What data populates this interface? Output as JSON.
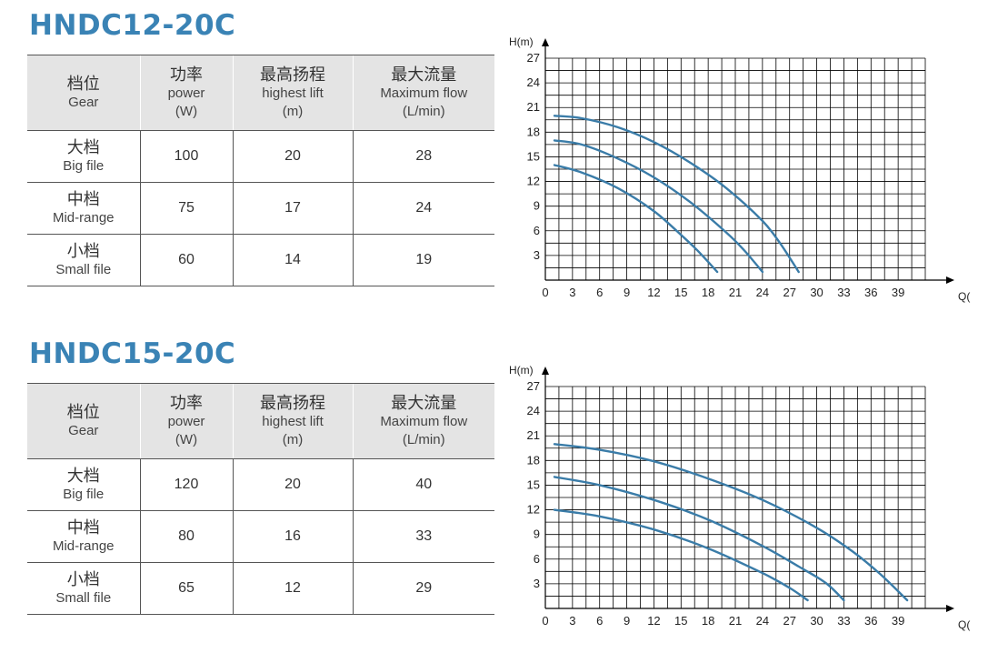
{
  "sections": [
    {
      "model": "HNDC12-20C",
      "table": {
        "headers": [
          {
            "zh": "档位",
            "en": "Gear",
            "unit": ""
          },
          {
            "zh": "功率",
            "en": "power",
            "unit": "(W)"
          },
          {
            "zh": "最高扬程",
            "en": "highest lift",
            "unit": "(m)"
          },
          {
            "zh": "最大流量",
            "en": "Maximum flow",
            "unit": "(L/min)"
          }
        ],
        "rows": [
          {
            "gear_zh": "大档",
            "gear_en": "Big file",
            "power": "100",
            "lift": "20",
            "flow": "28"
          },
          {
            "gear_zh": "中档",
            "gear_en": "Mid-range",
            "power": "75",
            "lift": "17",
            "flow": "24"
          },
          {
            "gear_zh": "小档",
            "gear_en": "Small file",
            "power": "60",
            "lift": "14",
            "flow": "19"
          }
        ]
      }
    },
    {
      "model": "HNDC15-20C",
      "table": {
        "headers": [
          {
            "zh": "档位",
            "en": "Gear",
            "unit": ""
          },
          {
            "zh": "功率",
            "en": "power",
            "unit": "(W)"
          },
          {
            "zh": "最高扬程",
            "en": "highest lift",
            "unit": "(m)"
          },
          {
            "zh": "最大流量",
            "en": "Maximum flow",
            "unit": "(L/min)"
          }
        ],
        "rows": [
          {
            "gear_zh": "大档",
            "gear_en": "Big file",
            "power": "120",
            "lift": "20",
            "flow": "40"
          },
          {
            "gear_zh": "中档",
            "gear_en": "Mid-range",
            "power": "80",
            "lift": "16",
            "flow": "33"
          },
          {
            "gear_zh": "小档",
            "gear_en": "Small file",
            "power": "65",
            "lift": "12",
            "flow": "29"
          }
        ]
      }
    }
  ],
  "chart_data": [
    {
      "type": "line",
      "title": "",
      "xlabel": "Q(l/min)",
      "ylabel": "H(m)",
      "xlim": [
        0,
        42
      ],
      "ylim": [
        0,
        27
      ],
      "xticks": [
        0,
        3,
        6,
        9,
        12,
        15,
        18,
        21,
        24,
        27,
        30,
        33,
        36,
        39
      ],
      "yticks": [
        3,
        6,
        9,
        12,
        15,
        18,
        21,
        24,
        27
      ],
      "grid": true,
      "line_color": "#3a7ca8",
      "series": [
        {
          "x": [
            1,
            4,
            8,
            12,
            16,
            20,
            24,
            26,
            28
          ],
          "y": [
            20,
            19.7,
            18.6,
            16.8,
            14.3,
            11.2,
            7.2,
            4.4,
            1
          ]
        },
        {
          "x": [
            1,
            4,
            8,
            12,
            16,
            20,
            22,
            24
          ],
          "y": [
            17,
            16.5,
            14.8,
            12.5,
            9.5,
            5.8,
            3.6,
            1
          ]
        },
        {
          "x": [
            1,
            4,
            8,
            12,
            15,
            17,
            19
          ],
          "y": [
            14,
            13.1,
            11.2,
            8.4,
            5.5,
            3.4,
            1
          ]
        }
      ]
    },
    {
      "type": "line",
      "title": "",
      "xlabel": "Q(l/min)",
      "ylabel": "H(m)",
      "xlim": [
        0,
        42
      ],
      "ylim": [
        0,
        27
      ],
      "xticks": [
        0,
        3,
        6,
        9,
        12,
        15,
        18,
        21,
        24,
        27,
        30,
        33,
        36,
        39
      ],
      "yticks": [
        3,
        6,
        9,
        12,
        15,
        18,
        21,
        24,
        27
      ],
      "grid": true,
      "line_color": "#3a7ca8",
      "series": [
        {
          "x": [
            1,
            6,
            12,
            18,
            24,
            30,
            34,
            37,
            40
          ],
          "y": [
            20,
            19.3,
            17.9,
            15.8,
            13.2,
            9.8,
            6.9,
            4.2,
            1
          ]
        },
        {
          "x": [
            1,
            6,
            12,
            18,
            24,
            28,
            31,
            33
          ],
          "y": [
            16,
            15,
            13.2,
            10.8,
            7.6,
            5.1,
            3.1,
            1
          ]
        },
        {
          "x": [
            1,
            6,
            12,
            18,
            24,
            27,
            29
          ],
          "y": [
            12,
            11.2,
            9.6,
            7.3,
            4.3,
            2.5,
            1
          ]
        }
      ]
    }
  ]
}
